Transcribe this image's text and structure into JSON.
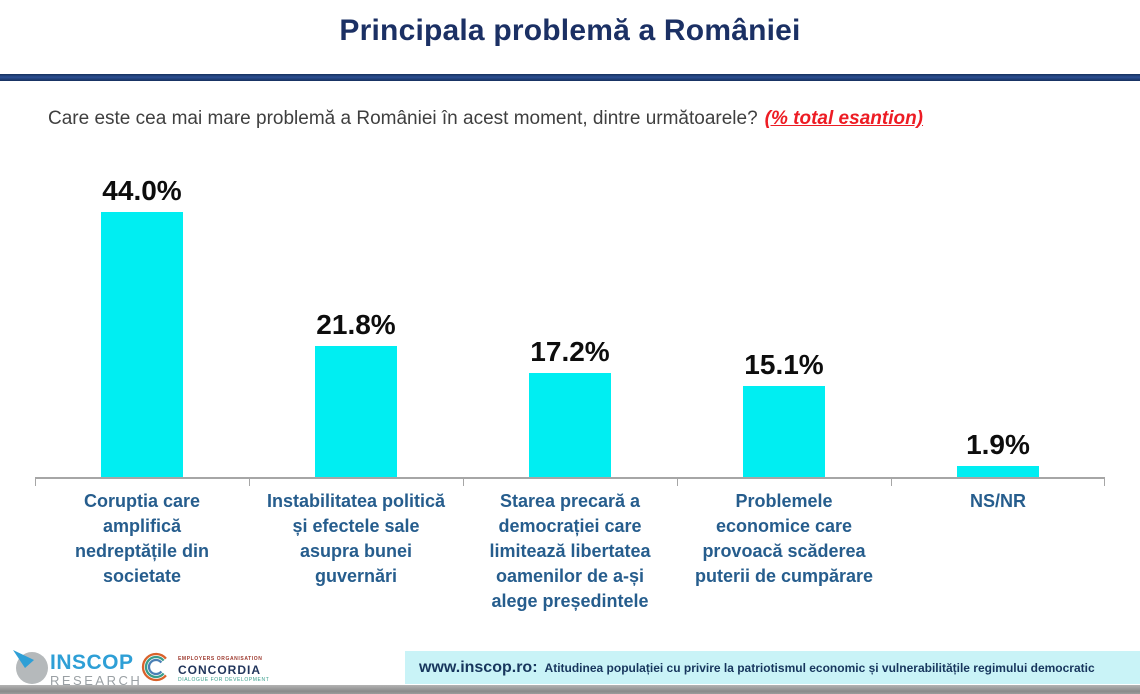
{
  "title": "Principala problemă a României",
  "subtitle": {
    "question": "Care este cea mai mare problemă a României în acest moment, dintre următoarele?",
    "emphasis": "(% total esantion)"
  },
  "chart_data": {
    "type": "bar",
    "title": "Principala problemă a României",
    "question": "Care este cea mai mare problemă a României în acest moment, dintre următoarele? (% total esantion)",
    "categories": [
      "Coruptia care amplifică nedreptățile din societate",
      "Instabilitatea politică și efectele sale asupra bunei guvernări",
      "Starea precară a democrației care limitează libertatea oamenilor de a-și alege președintele",
      "Problemele economice care provoacă scăderea puterii de cumpărare",
      "NS/NR"
    ],
    "categories_display": [
      "Coruptia care\namplifică\nnedreptățile din\nsocietate",
      "Instabilitatea politică\nși efectele sale\nasupra bunei\nguvernări",
      "Starea precară a\ndemocrației care\nlimitează libertatea\noamenilor de a-și\nalege președintele",
      "Problemele\neconomice care\nprovoacă scăderea\nputerii de cumpărare",
      "NS/NR"
    ],
    "values": [
      44.0,
      21.8,
      17.2,
      15.1,
      1.9
    ],
    "value_labels": [
      "44.0%",
      "21.8%",
      "17.2%",
      "15.1%",
      "1.9%"
    ],
    "unit": "%",
    "ylim": [
      0,
      53
    ],
    "grid": false,
    "legend": false,
    "bar_color": "#00eef2",
    "value_label_color": "#0d0d0d",
    "category_label_color": "#265d8d",
    "axis_color": "#a6a6a6"
  },
  "colors": {
    "title": "#1b3064",
    "divider": "#1f3864",
    "question_text": "#3f3f3f",
    "emphasis_red": "#ed1c24",
    "footer_strip_bg": "#c9f3f7",
    "footer_text": "#17365d",
    "bottom_bar_gray": "#8a8a8a",
    "inscop_blue": "#2e9fd6",
    "inscop_gray": "#9aa0a4"
  },
  "footer": {
    "inscop": {
      "top": "INSCOP",
      "bottom": "RESEARCH"
    },
    "concordia": {
      "line1": "EMPLOYERS ORGANISATION",
      "name": "CONCORDIA",
      "line2": "DIALOGUE FOR DEVELOPMENT"
    },
    "strip": {
      "site": "www.inscop.ro:",
      "text": "Atitudinea populației cu privire la patriotismul economic și vulnerabilitățile regimului democratic"
    }
  }
}
